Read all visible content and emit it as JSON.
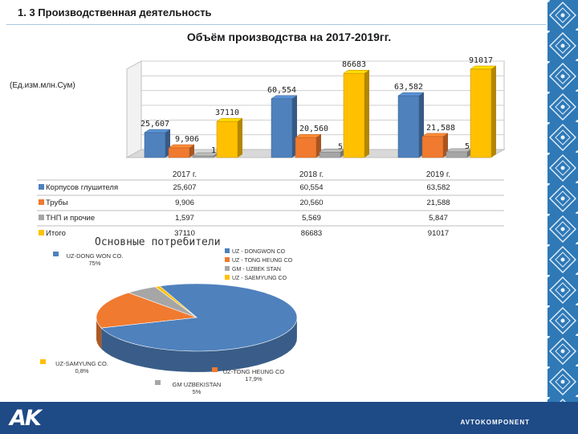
{
  "header": {
    "title": "1. 3 Производственная деятельность"
  },
  "footer": {
    "brand": "AVTOKOMPONENT",
    "logo": "AK",
    "bar_color": "#1e4a86",
    "side_color": "#2f79b7"
  },
  "chart_data": [
    {
      "type": "bar",
      "title": "Объём  производства на 2017-2019гг.",
      "unit_label": "(Ед.изм.млн.Сум)",
      "categories": [
        "2017 г.",
        "2018 г.",
        "2019 г."
      ],
      "series": [
        {
          "name": "Корпусов глушителя",
          "color": "#4f81bd",
          "values": [
            25607,
            60554,
            63582
          ],
          "labels": [
            "25,607",
            "60,554",
            "63,582"
          ],
          "table": [
            "25,607",
            "60,554",
            "63,582"
          ]
        },
        {
          "name": "Трубы",
          "color": "#f07a2f",
          "values": [
            9906,
            20560,
            21588
          ],
          "labels": [
            "9,906",
            "20,560",
            "21,588"
          ],
          "table": [
            "9,906",
            "20,560",
            "21,588"
          ]
        },
        {
          "name": "ТНП и прочие",
          "color": "#a6a6a6",
          "values": [
            1597,
            5569,
            5847
          ],
          "labels": [
            "1,597",
            "5,569",
            "5,847"
          ],
          "table": [
            "1,597",
            "5,569",
            "5,847"
          ]
        },
        {
          "name": "Итого",
          "color": "#ffc000",
          "values": [
            37110,
            86683,
            91017
          ],
          "labels": [
            "37110",
            "86683",
            "91017"
          ],
          "table": [
            "37110",
            "86683",
            "91017"
          ]
        }
      ],
      "ylim": [
        0,
        91017
      ],
      "grid": true,
      "legend": "table-below"
    },
    {
      "type": "pie",
      "title": "Основные потребители",
      "legend": "top-right",
      "slices": [
        {
          "name": "UZ-DONG WON CO.",
          "legend": "UZ - DONGWON CO",
          "value": 75,
          "pct": "75%",
          "color": "#4f81bd"
        },
        {
          "name": "UZ-TONG HEUNG CO",
          "legend": "UZ - TONG HEUNG CO",
          "value": 17.9,
          "pct": "17,9%",
          "color": "#f07a2f"
        },
        {
          "name": "GM UZBEKISTAN",
          "legend": "GM - UZBEK STAN",
          "value": 5,
          "pct": "5%",
          "color": "#a6a6a6"
        },
        {
          "name": "UZ-SAMYUNG CO.",
          "legend": "UZ - SAEMYUNG CO",
          "value": 0.8,
          "pct": "0,8%",
          "color": "#ffc000"
        }
      ]
    }
  ]
}
